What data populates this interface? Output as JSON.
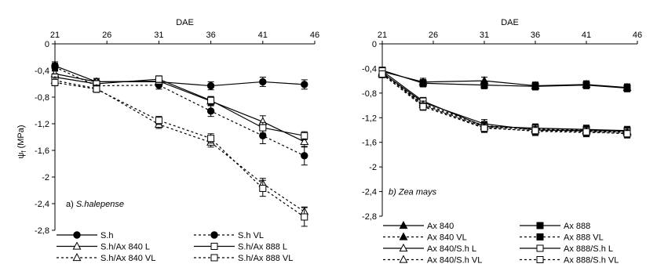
{
  "chart_data": [
    {
      "type": "line",
      "panel_label_prefix": "a) ",
      "panel_label_italic": "S.halepense",
      "xlabel": "DAE",
      "ylabel": "ψ",
      "ylabel_sub": "f",
      "ylabel_unit": " (MPa)",
      "xticks": [
        "21",
        "26",
        "31",
        "36",
        "41",
        "46"
      ],
      "yticks": [
        "0",
        "-0,4",
        "-0,8",
        "-1,2",
        "-1,6",
        "-2",
        "-2,4",
        "-2,8"
      ],
      "xlim": [
        21,
        46
      ],
      "ylim": [
        -2.8,
        0
      ],
      "grid": false,
      "legend_position": "bottom",
      "series": [
        {
          "name": "S.h",
          "marker": "circle-filled",
          "dashed": false,
          "x": [
            21,
            25,
            31,
            36,
            41,
            45
          ],
          "y": [
            -0.33,
            -0.57,
            -0.57,
            -0.63,
            -0.57,
            -0.61
          ],
          "err": [
            0.06,
            0.05,
            0.05,
            0.06,
            0.07,
            0.07
          ]
        },
        {
          "name": "S.h VL",
          "marker": "circle-filled",
          "dashed": true,
          "x": [
            21,
            25,
            31,
            36,
            41,
            45
          ],
          "y": [
            -0.35,
            -0.63,
            -0.62,
            -1.01,
            -1.38,
            -1.68
          ],
          "err": [
            0.06,
            0.05,
            0.06,
            0.08,
            0.12,
            0.14
          ]
        },
        {
          "name": "S.h/Ax 840 L",
          "marker": "triangle-open",
          "dashed": false,
          "x": [
            21,
            25,
            31,
            36,
            41,
            45
          ],
          "y": [
            -0.45,
            -0.57,
            -0.56,
            -0.86,
            -1.17,
            -1.47
          ],
          "err": [
            0.05,
            0.05,
            0.05,
            0.06,
            0.09,
            0.08
          ]
        },
        {
          "name": "S.h/Ax 888 L",
          "marker": "square-open",
          "dashed": false,
          "x": [
            21,
            25,
            31,
            36,
            41,
            45
          ],
          "y": [
            -0.5,
            -0.6,
            -0.53,
            -0.85,
            -1.26,
            -1.38
          ],
          "err": [
            0.05,
            0.05,
            0.05,
            0.06,
            0.08,
            0.06
          ]
        },
        {
          "name": "S.h/Ax 840 VL",
          "marker": "triangle-open",
          "dashed": true,
          "x": [
            21,
            25,
            31,
            36,
            41,
            45
          ],
          "y": [
            -0.55,
            -0.67,
            -1.21,
            -1.48,
            -2.1,
            -2.52
          ],
          "err": [
            0.05,
            0.05,
            0.06,
            0.07,
            0.08,
            0.07
          ]
        },
        {
          "name": "S.h/Ax 888 VL",
          "marker": "square-open",
          "dashed": true,
          "x": [
            21,
            25,
            31,
            36,
            41,
            45
          ],
          "y": [
            -0.58,
            -0.68,
            -1.15,
            -1.42,
            -2.17,
            -2.6
          ],
          "err": [
            0.05,
            0.05,
            0.06,
            0.07,
            0.12,
            0.14
          ]
        }
      ]
    },
    {
      "type": "line",
      "panel_label_prefix": "b) ",
      "panel_label_italic": "Zea mays",
      "xlabel": "DAE",
      "xticks": [
        "21",
        "26",
        "31",
        "36",
        "41",
        "46"
      ],
      "yticks": [
        "0",
        "-0,4",
        "-0,8",
        "-1,2",
        "-1,6",
        "-2",
        "-2,4",
        "-2,8"
      ],
      "xlim": [
        21,
        46
      ],
      "ylim": [
        -2.8,
        0
      ],
      "grid": false,
      "legend_position": "bottom",
      "series": [
        {
          "name": "Ax 840",
          "marker": "triangle-filled",
          "dashed": false,
          "x": [
            21,
            25,
            31,
            36,
            41,
            45
          ],
          "y": [
            -0.45,
            -0.62,
            -0.6,
            -0.68,
            -0.66,
            -0.71
          ],
          "err": [
            0.05,
            0.06,
            0.06,
            0.06,
            0.06,
            0.06
          ]
        },
        {
          "name": "Ax 888",
          "marker": "square-filled",
          "dashed": false,
          "x": [
            21,
            25,
            31,
            36,
            41,
            45
          ],
          "y": [
            -0.43,
            -0.64,
            -0.67,
            -0.69,
            -0.67,
            -0.72
          ],
          "err": [
            0.05,
            0.06,
            0.06,
            0.06,
            0.06,
            0.06
          ]
        },
        {
          "name": "Ax 840 VL",
          "marker": "triangle-filled",
          "dashed": true,
          "x": [
            21,
            25,
            31,
            36,
            41,
            45
          ],
          "y": [
            -0.48,
            -0.97,
            -1.33,
            -1.38,
            -1.4,
            -1.43
          ],
          "err": [
            0.05,
            0.06,
            0.07,
            0.07,
            0.07,
            0.07
          ]
        },
        {
          "name": "Ax 888 VL",
          "marker": "square-filled",
          "dashed": true,
          "x": [
            21,
            25,
            31,
            36,
            41,
            45
          ],
          "y": [
            -0.46,
            -1.0,
            -1.36,
            -1.42,
            -1.44,
            -1.45
          ],
          "err": [
            0.05,
            0.06,
            0.07,
            0.07,
            0.07,
            0.07
          ]
        },
        {
          "name": "Ax 840/S.h L",
          "marker": "triangle-open",
          "dashed": false,
          "x": [
            21,
            25,
            31,
            36,
            41,
            45
          ],
          "y": [
            -0.47,
            -0.95,
            -1.3,
            -1.4,
            -1.41,
            -1.42
          ],
          "err": [
            0.05,
            0.06,
            0.07,
            0.07,
            0.07,
            0.07
          ]
        },
        {
          "name": "Ax 888/S.h L",
          "marker": "square-open",
          "dashed": false,
          "x": [
            21,
            25,
            31,
            36,
            41,
            45
          ],
          "y": [
            -0.44,
            -0.93,
            -1.34,
            -1.37,
            -1.39,
            -1.41
          ],
          "err": [
            0.05,
            0.06,
            0.07,
            0.07,
            0.07,
            0.07
          ]
        },
        {
          "name": "Ax 840/S.h VL",
          "marker": "triangle-open",
          "dashed": true,
          "x": [
            21,
            25,
            31,
            36,
            41,
            45
          ],
          "y": [
            -0.5,
            -0.99,
            -1.35,
            -1.39,
            -1.42,
            -1.44
          ],
          "err": [
            0.05,
            0.06,
            0.07,
            0.07,
            0.07,
            0.07
          ]
        },
        {
          "name": "Ax 888/S.h VL",
          "marker": "square-open",
          "dashed": true,
          "x": [
            21,
            25,
            31,
            36,
            41,
            45
          ],
          "y": [
            -0.49,
            -1.02,
            -1.37,
            -1.41,
            -1.43,
            -1.46
          ],
          "err": [
            0.05,
            0.06,
            0.07,
            0.07,
            0.07,
            0.07
          ]
        }
      ]
    }
  ]
}
